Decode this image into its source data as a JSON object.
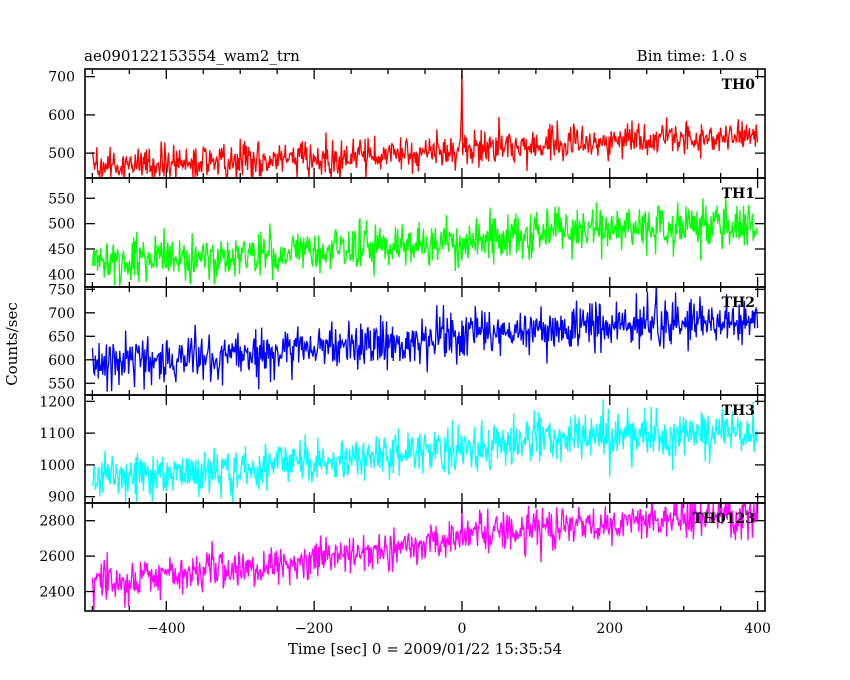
{
  "chart_data": {
    "type": "line",
    "title": "ae090122153554_wam2_trn",
    "subtitle": "Bin time: 1.0 s",
    "xlabel": "Time [sec] 0 = 2009/01/22 15:35:54",
    "ylabel": "Counts/sec",
    "xlim": [
      -510,
      410
    ],
    "x_ticks": [
      -400,
      -200,
      0,
      200,
      400
    ],
    "x_tick_labels": [
      "−400",
      "−200",
      "0",
      "200",
      "400"
    ],
    "x_start": -500,
    "x_end": 400,
    "bin_time": 1.0,
    "panels": [
      {
        "name": "TH0",
        "color": "#ff0000",
        "ylim": [
          435,
          720
        ],
        "y_ticks": [
          500,
          600,
          700
        ],
        "trend": [
          [
            -500,
            465
          ],
          [
            -300,
            480
          ],
          [
            -100,
            495
          ],
          [
            0,
            510
          ],
          [
            100,
            520
          ],
          [
            200,
            530
          ],
          [
            300,
            540
          ],
          [
            400,
            545
          ]
        ],
        "noise_sd": 22,
        "spikes": [
          {
            "x": 0,
            "y": 725
          },
          {
            "x": -1,
            "y": 600
          }
        ]
      },
      {
        "name": "TH1",
        "color": "#00ff00",
        "ylim": [
          375,
          590
        ],
        "y_ticks": [
          400,
          450,
          500,
          550
        ],
        "trend": [
          [
            -500,
            425
          ],
          [
            -300,
            438
          ],
          [
            -100,
            455
          ],
          [
            0,
            465
          ],
          [
            100,
            480
          ],
          [
            200,
            490
          ],
          [
            300,
            492
          ],
          [
            400,
            495
          ]
        ],
        "noise_sd": 23,
        "spikes": []
      },
      {
        "name": "TH2",
        "color": "#0000ff",
        "ylim": [
          525,
          755
        ],
        "y_ticks": [
          550,
          600,
          650,
          700,
          750
        ],
        "trend": [
          [
            -500,
            595
          ],
          [
            -300,
            612
          ],
          [
            -100,
            635
          ],
          [
            0,
            650
          ],
          [
            100,
            665
          ],
          [
            200,
            675
          ],
          [
            300,
            680
          ],
          [
            400,
            680
          ]
        ],
        "noise_sd": 25,
        "spikes": []
      },
      {
        "name": "TH3",
        "color": "#00ffff",
        "ylim": [
          880,
          1220
        ],
        "y_ticks": [
          900,
          1000,
          1100,
          1200
        ],
        "trend": [
          [
            -500,
            955
          ],
          [
            -300,
            985
          ],
          [
            -100,
            1030
          ],
          [
            0,
            1055
          ],
          [
            100,
            1085
          ],
          [
            200,
            1095
          ],
          [
            300,
            1100
          ],
          [
            400,
            1105
          ]
        ],
        "noise_sd": 35,
        "spikes": []
      },
      {
        "name": "TH0123",
        "color": "#ff00ff",
        "ylim": [
          2290,
          2900
        ],
        "y_ticks": [
          2400,
          2600,
          2800
        ],
        "trend": [
          [
            -500,
            2450
          ],
          [
            -300,
            2520
          ],
          [
            -200,
            2580
          ],
          [
            -100,
            2650
          ],
          [
            0,
            2710
          ],
          [
            100,
            2750
          ],
          [
            200,
            2790
          ],
          [
            300,
            2810
          ],
          [
            400,
            2830
          ]
        ],
        "noise_sd": 55,
        "spikes": [
          {
            "x": 0,
            "y": 2885
          }
        ]
      }
    ]
  }
}
